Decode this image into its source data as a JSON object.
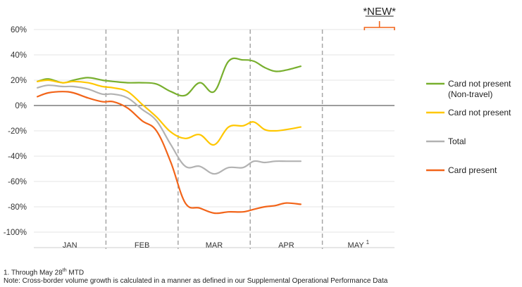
{
  "chart_data": {
    "type": "line",
    "x": [
      0.05,
      0.2,
      0.4,
      0.55,
      0.75,
      0.95,
      1.1,
      1.3,
      1.5,
      1.7,
      1.9,
      2.1,
      2.3,
      2.5,
      2.7,
      2.9,
      3.05,
      3.2,
      3.35,
      3.5,
      3.7,
      3.9,
      4.1,
      4.3,
      4.5,
      4.7,
      4.85
    ],
    "ylim": [
      -100,
      60
    ],
    "yticks": [
      60,
      40,
      20,
      0,
      -20,
      -40,
      -60,
      -80,
      -100
    ],
    "ytick_labels": [
      "60%",
      "40%",
      "20%",
      "0%",
      "-20%",
      "-40%",
      "-60%",
      "-80%",
      "-100%"
    ],
    "categories": [
      "JAN",
      "FEB",
      "MAR",
      "APR",
      "MAY"
    ],
    "may_superscript": "1",
    "month_dividers": [
      1,
      2,
      3,
      4
    ],
    "zero_line": true,
    "annotation": {
      "label": "*NEW*",
      "x_range": [
        4.3,
        5.0
      ],
      "y": 61
    },
    "legend_position": "right",
    "series": [
      {
        "name": "Card not present",
        "name_line2": "(Non-travel)",
        "color": "#78AF2E",
        "values": [
          19,
          21,
          18,
          20,
          22,
          20,
          19,
          18,
          18,
          17,
          11,
          8,
          18,
          11,
          35,
          36,
          35,
          30,
          27,
          28,
          31,
          null,
          null,
          null,
          null,
          null,
          null
        ]
      },
      {
        "name": "Card not present",
        "color": "#FFC700",
        "values": [
          19,
          20,
          18,
          19,
          18,
          15,
          14,
          11,
          1,
          -9,
          -21,
          -26,
          -23,
          -31,
          -17,
          -16,
          -13,
          -19,
          -20,
          -19,
          -17,
          null,
          null,
          null,
          null,
          null,
          null
        ]
      },
      {
        "name": "Total",
        "color": "#B2B2B2",
        "values": [
          14,
          16,
          15,
          15,
          13,
          9,
          9,
          6,
          -3,
          -12,
          -31,
          -48,
          -48,
          -54,
          -49,
          -49,
          -44,
          -45,
          -44,
          -44,
          -44,
          null,
          null,
          null,
          null,
          null,
          null
        ]
      },
      {
        "name": "Card present",
        "color": "#F26419",
        "values": [
          7,
          10,
          11,
          10,
          6,
          3,
          3,
          -2,
          -12,
          -20,
          -45,
          -77,
          -81,
          -85,
          -84,
          -84,
          -82,
          -80,
          -79,
          -77,
          -78,
          null,
          null,
          null,
          null,
          null,
          null
        ]
      }
    ]
  },
  "footnotes": {
    "line1_prefix": "1. Through May 28",
    "line1_sup": "th",
    "line1_suffix": " MTD",
    "line2": "Note: Cross-border volume growth is calculated in a manner as defined in our Supplemental Operational Performance Data"
  }
}
